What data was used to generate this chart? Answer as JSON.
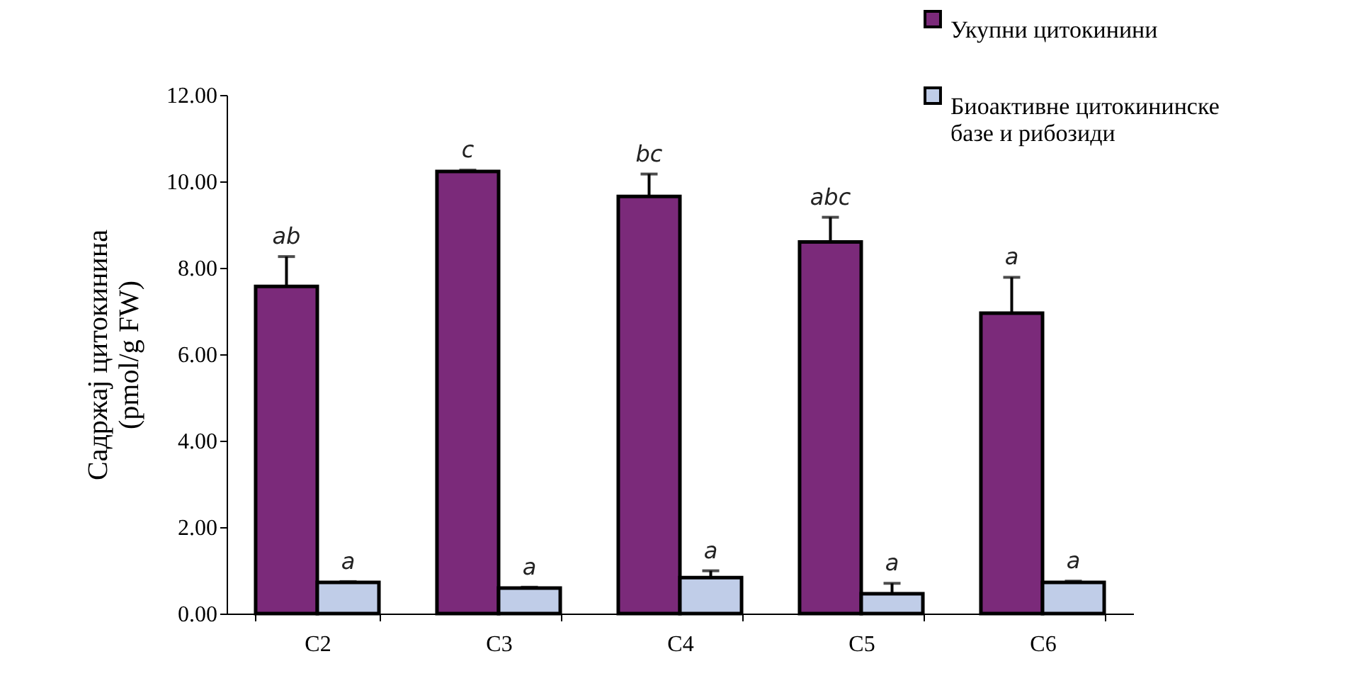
{
  "chart_data": {
    "type": "bar",
    "ylabel": "Садржај цитокинина\n(pmol/g FW)",
    "categories": [
      "C2",
      "C3",
      "C4",
      "C5",
      "C6"
    ],
    "series": [
      {
        "name": "Укупни цитокинини",
        "color": "#7b2a7a",
        "values": [
          7.57,
          10.23,
          9.65,
          8.6,
          6.95
        ],
        "errors": [
          0.69,
          0.03,
          0.52,
          0.57,
          0.83
        ],
        "value_labels": [
          "ab",
          "c",
          "bc",
          "abc",
          "a"
        ]
      },
      {
        "name": "Биоактивне цитокининске базе и рибозиди",
        "color": "#c0cde8",
        "values": [
          0.72,
          0.59,
          0.83,
          0.46,
          0.72
        ],
        "errors": [
          0.02,
          0.02,
          0.16,
          0.24,
          0.03
        ],
        "value_labels": [
          "a",
          "a",
          "a",
          "a",
          "a"
        ]
      }
    ],
    "ylim": [
      0,
      12
    ],
    "yticks": [
      {
        "value": 0,
        "label": "0.00"
      },
      {
        "value": 2,
        "label": "2.00"
      },
      {
        "value": 4,
        "label": "4.00"
      },
      {
        "value": 6,
        "label": "6.00"
      },
      {
        "value": 8,
        "label": "8.00"
      },
      {
        "value": 10,
        "label": "10.00"
      },
      {
        "value": 12,
        "label": "12.00"
      }
    ],
    "grid": false,
    "legend": "top right"
  }
}
